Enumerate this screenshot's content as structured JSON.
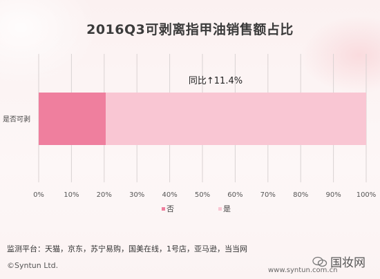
{
  "page": {
    "title": "2016Q3可剥离指甲油销售额占比",
    "footnote": "监测平台：天猫，京东，苏宁易购，国美在线，1号店，亚马逊，当当网",
    "copyright": "©Syntun Ltd.",
    "website": "www.syntun.com.cn",
    "watermark": "国妆网"
  },
  "chart_data": {
    "type": "bar",
    "orientation": "horizontal",
    "stacked": true,
    "percent_axis": true,
    "categories": [
      "是否可剥"
    ],
    "series": [
      {
        "name": "否",
        "values": [
          20.5
        ],
        "color": "#ef7f9e"
      },
      {
        "name": "是",
        "values": [
          79.5
        ],
        "color": "#f9c6d3"
      }
    ],
    "xlim": [
      0,
      100
    ],
    "x_ticks": [
      "0%",
      "10%",
      "20%",
      "30%",
      "40%",
      "50%",
      "60%",
      "70%",
      "80%",
      "90%",
      "100%"
    ],
    "annotation": "同比↑11.4%",
    "legend_position": "bottom",
    "grid": true
  }
}
